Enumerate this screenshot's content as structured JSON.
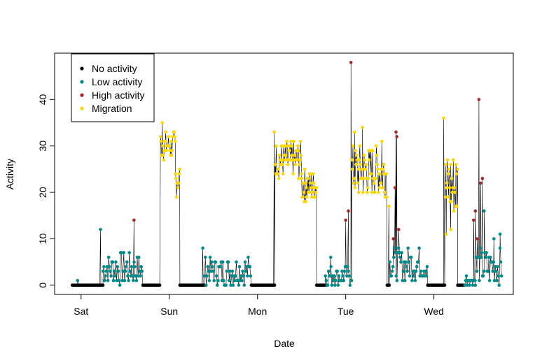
{
  "chart_data": {
    "type": "scatter",
    "xlabel": "Date",
    "ylabel": "Activity",
    "xlim": [
      -0.15,
      5.05
    ],
    "ylim": [
      -2,
      50
    ],
    "x_ticks": [
      {
        "value": 0.15,
        "label": "Sat"
      },
      {
        "value": 1.15,
        "label": "Sun"
      },
      {
        "value": 2.15,
        "label": "Mon"
      },
      {
        "value": 3.15,
        "label": "Tue"
      },
      {
        "value": 4.15,
        "label": "Wed"
      }
    ],
    "y_ticks": [
      0,
      10,
      20,
      30,
      40
    ],
    "legend": {
      "position": "top-left"
    },
    "series": [
      {
        "name": "No activity",
        "color": "#000000"
      },
      {
        "name": "Low activity",
        "color": "#008b8b"
      },
      {
        "name": "High activity",
        "color": "#a52a2a"
      },
      {
        "name": "Migration",
        "color": "#ffd700"
      }
    ],
    "segments": [
      {
        "class": 0,
        "x0": 0.05,
        "x1": 0.4,
        "lo": 0,
        "hi": 0,
        "step": 0.012
      },
      {
        "class": 1,
        "x0": 0.4,
        "x1": 0.85,
        "lo": 0,
        "hi": 7,
        "step": 0.009
      },
      {
        "class": 0,
        "x0": 0.85,
        "x1": 1.05,
        "lo": 0,
        "hi": 0,
        "step": 0.012
      },
      {
        "class": 3,
        "x0": 1.05,
        "x1": 1.22,
        "lo": 27,
        "hi": 33,
        "step": 0.006
      },
      {
        "class": 3,
        "x0": 1.22,
        "x1": 1.27,
        "lo": 19,
        "hi": 27,
        "step": 0.006
      },
      {
        "class": 0,
        "x0": 1.27,
        "x1": 1.55,
        "lo": 0,
        "hi": 0,
        "step": 0.012
      },
      {
        "class": 1,
        "x0": 1.55,
        "x1": 2.08,
        "lo": 0,
        "hi": 6,
        "step": 0.009
      },
      {
        "class": 0,
        "x0": 2.08,
        "x1": 2.35,
        "lo": 0,
        "hi": 0,
        "step": 0.012
      },
      {
        "class": 3,
        "x0": 2.35,
        "x1": 2.65,
        "lo": 23,
        "hi": 31,
        "step": 0.006
      },
      {
        "class": 3,
        "x0": 2.65,
        "x1": 2.82,
        "lo": 18,
        "hi": 25,
        "step": 0.006
      },
      {
        "class": 0,
        "x0": 2.82,
        "x1": 2.92,
        "lo": 0,
        "hi": 0,
        "step": 0.012
      },
      {
        "class": 1,
        "x0": 2.92,
        "x1": 3.22,
        "lo": 0,
        "hi": 4,
        "step": 0.009
      },
      {
        "class": 3,
        "x0": 3.22,
        "x1": 3.62,
        "lo": 19,
        "hi": 30,
        "step": 0.006
      },
      {
        "class": 0,
        "x0": 3.62,
        "x1": 3.65,
        "lo": 0,
        "hi": 0,
        "step": 0.012
      },
      {
        "class": 1,
        "x0": 3.65,
        "x1": 4.08,
        "lo": 1,
        "hi": 8,
        "step": 0.009
      },
      {
        "class": 0,
        "x0": 4.08,
        "x1": 4.28,
        "lo": 0,
        "hi": 0,
        "step": 0.012
      },
      {
        "class": 3,
        "x0": 4.28,
        "x1": 4.42,
        "lo": 14,
        "hi": 29,
        "step": 0.006
      },
      {
        "class": 0,
        "x0": 4.42,
        "x1": 4.5,
        "lo": 0,
        "hi": 0,
        "step": 0.012
      },
      {
        "class": 1,
        "x0": 4.5,
        "x1": 4.62,
        "lo": 0,
        "hi": 2,
        "step": 0.009
      },
      {
        "class": 1,
        "x0": 4.62,
        "x1": 4.92,
        "lo": 0,
        "hi": 8,
        "step": 0.009
      }
    ],
    "extra_points": [
      {
        "x": 0.11,
        "y": 1,
        "class": 1
      },
      {
        "x": 0.37,
        "y": 12,
        "class": 1
      },
      {
        "x": 0.75,
        "y": 14,
        "class": 2
      },
      {
        "x": 0.76,
        "y": 4,
        "class": 1
      },
      {
        "x": 1.07,
        "y": 35,
        "class": 3
      },
      {
        "x": 1.53,
        "y": 8,
        "class": 1
      },
      {
        "x": 2.34,
        "y": 33,
        "class": 3
      },
      {
        "x": 2.98,
        "y": 6,
        "class": 1
      },
      {
        "x": 3.15,
        "y": 14,
        "class": 2
      },
      {
        "x": 3.18,
        "y": 16,
        "class": 2
      },
      {
        "x": 3.21,
        "y": 48,
        "class": 2
      },
      {
        "x": 3.25,
        "y": 33,
        "class": 3
      },
      {
        "x": 3.34,
        "y": 34,
        "class": 3
      },
      {
        "x": 3.56,
        "y": 31,
        "class": 3
      },
      {
        "x": 3.64,
        "y": 17,
        "class": 3
      },
      {
        "x": 3.69,
        "y": 10,
        "class": 2
      },
      {
        "x": 3.71,
        "y": 21,
        "class": 2
      },
      {
        "x": 3.72,
        "y": 33,
        "class": 2
      },
      {
        "x": 3.73,
        "y": 32,
        "class": 2
      },
      {
        "x": 3.75,
        "y": 12,
        "class": 2
      },
      {
        "x": 4.26,
        "y": 36,
        "class": 3
      },
      {
        "x": 4.29,
        "y": 11,
        "class": 3
      },
      {
        "x": 4.34,
        "y": 12,
        "class": 3
      },
      {
        "x": 4.41,
        "y": 17,
        "class": 3
      },
      {
        "x": 4.6,
        "y": 14,
        "class": 2
      },
      {
        "x": 4.62,
        "y": 16,
        "class": 2
      },
      {
        "x": 4.64,
        "y": 10,
        "class": 2
      },
      {
        "x": 4.66,
        "y": 40,
        "class": 2
      },
      {
        "x": 4.68,
        "y": 22,
        "class": 2
      },
      {
        "x": 4.7,
        "y": 23,
        "class": 2
      },
      {
        "x": 4.72,
        "y": 16,
        "class": 1
      },
      {
        "x": 4.83,
        "y": 10,
        "class": 1
      },
      {
        "x": 4.9,
        "y": 11,
        "class": 1
      }
    ]
  }
}
